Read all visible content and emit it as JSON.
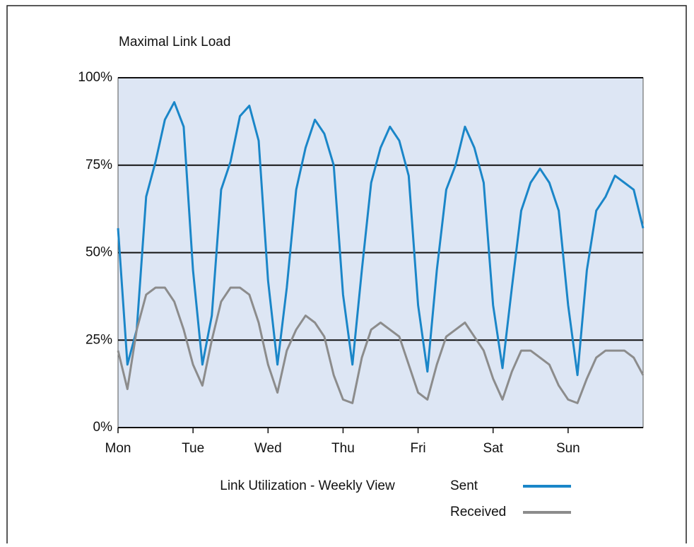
{
  "chart_data": {
    "type": "line",
    "title": "Maximal Link Load",
    "x_label": "Link Utilization - Weekly View",
    "categories": [
      "Mon",
      null,
      null,
      null,
      null,
      null,
      null,
      null,
      "Tue",
      null,
      null,
      null,
      null,
      null,
      null,
      null,
      "Wed",
      null,
      null,
      null,
      null,
      null,
      null,
      null,
      "Thu",
      null,
      null,
      null,
      null,
      null,
      null,
      null,
      "Fri",
      null,
      null,
      null,
      null,
      null,
      null,
      null,
      "Sat",
      null,
      null,
      null,
      null,
      null,
      null,
      null,
      "Sun",
      null,
      null,
      null,
      null,
      null,
      null,
      null,
      null
    ],
    "series": [
      {
        "name": "Sent",
        "color": "#1a86c8",
        "values": [
          57,
          18,
          28,
          66,
          76,
          88,
          93,
          86,
          45,
          18,
          32,
          68,
          76,
          89,
          92,
          82,
          42,
          18,
          40,
          68,
          80,
          88,
          84,
          75,
          38,
          18,
          45,
          70,
          80,
          86,
          82,
          72,
          35,
          16,
          45,
          68,
          75,
          86,
          80,
          70,
          35,
          17,
          40,
          62,
          70,
          74,
          70,
          62,
          35,
          15,
          45,
          62,
          66,
          72,
          70,
          68,
          57
        ]
      },
      {
        "name": "Received",
        "color": "#8c8c8c",
        "values": [
          22,
          11,
          28,
          38,
          40,
          40,
          36,
          28,
          18,
          12,
          25,
          36,
          40,
          40,
          38,
          30,
          18,
          10,
          22,
          28,
          32,
          30,
          26,
          15,
          8,
          7,
          20,
          28,
          30,
          28,
          26,
          18,
          10,
          8,
          18,
          26,
          28,
          30,
          26,
          22,
          14,
          8,
          16,
          22,
          22,
          20,
          18,
          12,
          8,
          7,
          14,
          20,
          22,
          22,
          22,
          20,
          15
        ]
      }
    ],
    "ylim": [
      0,
      100
    ],
    "yticks": [
      {
        "value": 0,
        "label": "0%"
      },
      {
        "value": 25,
        "label": "25%"
      },
      {
        "value": 50,
        "label": "50%"
      },
      {
        "value": 75,
        "label": "75%"
      },
      {
        "value": 100,
        "label": "100%"
      }
    ],
    "grid": true,
    "legend": "bottom right"
  }
}
